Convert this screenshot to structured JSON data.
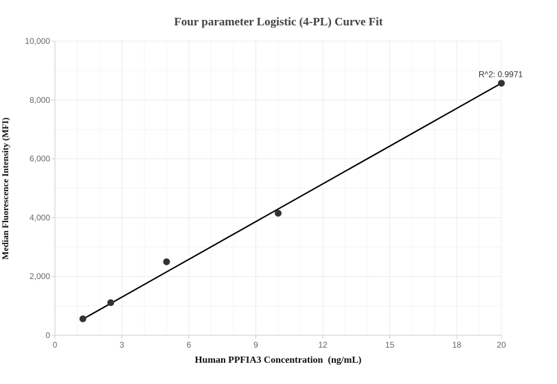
{
  "chart_data": {
    "type": "scatter",
    "title": "Four parameter Logistic (4-PL) Curve Fit",
    "xlabel": "Human PPFIA3 Concentration  (ng/mL)",
    "ylabel": "Median Fluorescence  Intensity (MFI)",
    "xlim": [
      0,
      20
    ],
    "ylim": [
      0,
      10000
    ],
    "x_ticks": [
      0,
      3,
      6,
      9,
      12,
      15,
      18,
      20
    ],
    "y_ticks": [
      0,
      2000,
      4000,
      6000,
      8000,
      10000
    ],
    "x_tick_labels": [
      "0",
      "3",
      "6",
      "9",
      "12",
      "15",
      "18",
      "20"
    ],
    "y_tick_labels": [
      "0",
      "2,000",
      "4,000",
      "6,000",
      "8,000",
      "10,000"
    ],
    "grid": true,
    "series": [
      {
        "points": [
          {
            "x": 1.25,
            "y": 560
          },
          {
            "x": 2.5,
            "y": 1110
          },
          {
            "x": 5,
            "y": 2500
          },
          {
            "x": 10,
            "y": 4150
          },
          {
            "x": 20,
            "y": 8570
          }
        ]
      }
    ],
    "fit_line": {
      "x": [
        1.25,
        20
      ],
      "y": [
        550,
        8570
      ]
    },
    "annotation": {
      "text": "R^2: 0.9971",
      "x": 20,
      "y": 8570
    },
    "colors": {
      "points": "#333333",
      "line": "#000000",
      "grid": "#ebebeb",
      "axis": "#cccccc"
    }
  }
}
